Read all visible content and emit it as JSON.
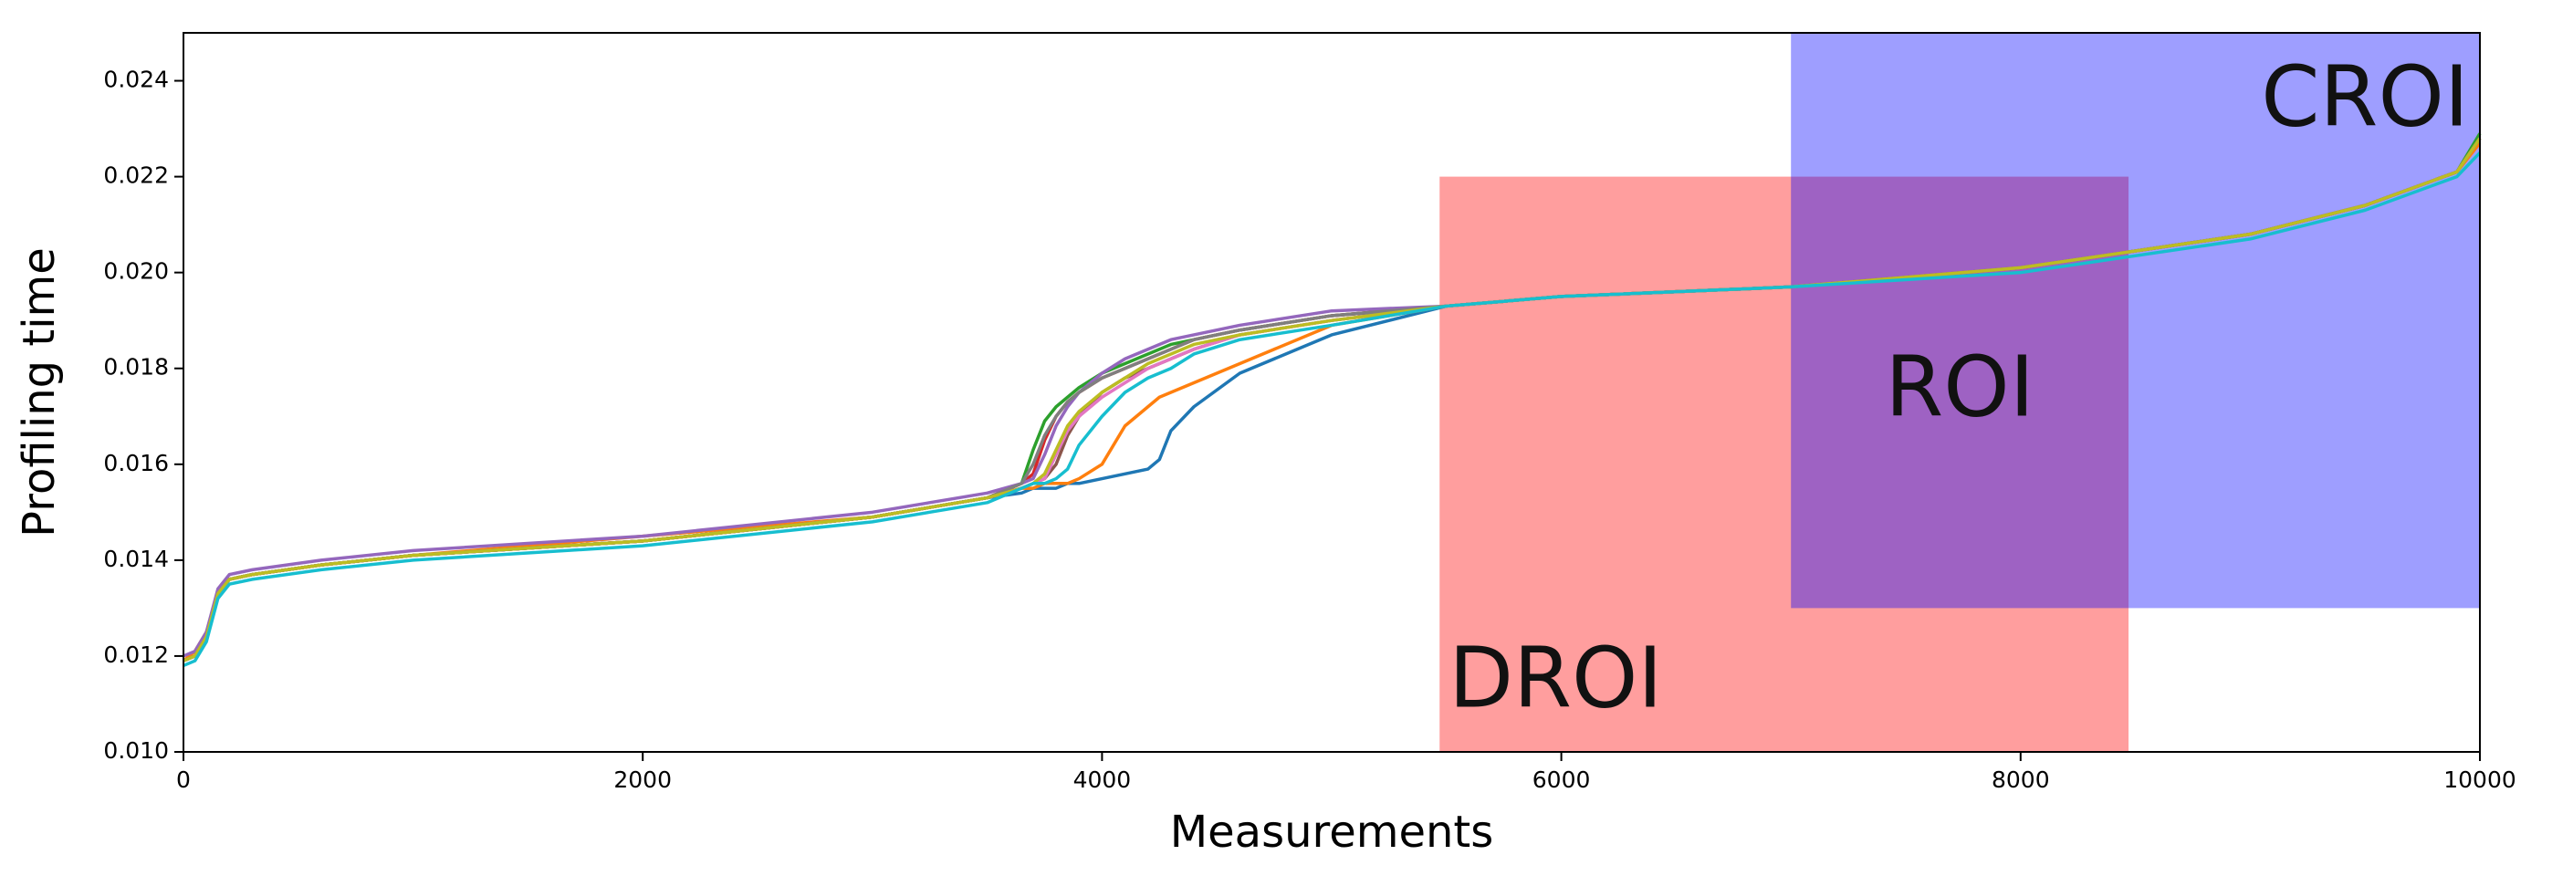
{
  "chart_data": {
    "type": "line",
    "xlabel": "Measurements",
    "ylabel": "Profiling time",
    "x": [
      0,
      50,
      100,
      150,
      200,
      300,
      600,
      1000,
      2000,
      3000,
      3500,
      3650,
      3700,
      3750,
      3800,
      3850,
      3900,
      4000,
      4100,
      4200,
      4250,
      4300,
      4400,
      4600,
      5000,
      5500,
      6000,
      7000,
      8000,
      9000,
      9500,
      9900,
      10000
    ],
    "xlim": [
      0,
      10000
    ],
    "ylim": [
      0.01,
      0.025
    ],
    "xticks": [
      0,
      2000,
      4000,
      6000,
      8000,
      10000
    ],
    "yticks": [
      {
        "value": 0.01,
        "label": "0.010"
      },
      {
        "value": 0.012,
        "label": "0.012"
      },
      {
        "value": 0.014,
        "label": "0.014"
      },
      {
        "value": 0.016,
        "label": "0.016"
      },
      {
        "value": 0.018,
        "label": "0.018"
      },
      {
        "value": 0.02,
        "label": "0.020"
      },
      {
        "value": 0.022,
        "label": "0.022"
      },
      {
        "value": 0.024,
        "label": "0.024"
      }
    ],
    "regions": [
      {
        "label": "DROI",
        "xlim": [
          5470,
          8470
        ],
        "ylim": [
          0.01,
          0.022
        ],
        "color": "#ff0000"
      },
      {
        "label": "CROI",
        "xlim": [
          7000,
          10000
        ],
        "ylim": [
          0.013,
          0.025
        ],
        "color": "#0000ff"
      }
    ],
    "annotation": "ROI",
    "series": [
      {
        "color": "#1f77b4",
        "values": [
          0.0119,
          0.012,
          0.0124,
          0.0133,
          0.0136,
          0.0137,
          0.0139,
          0.0141,
          0.0144,
          0.0149,
          0.0153,
          0.0154,
          0.0155,
          0.0155,
          0.0155,
          0.0156,
          0.0156,
          0.0157,
          0.0158,
          0.0159,
          0.0161,
          0.0167,
          0.0172,
          0.0179,
          0.0187,
          0.0193,
          0.0195,
          0.0197,
          0.0201,
          0.0208,
          0.0214,
          0.0221,
          0.0228
        ]
      },
      {
        "color": "#ff7f0e",
        "values": [
          0.0119,
          0.0121,
          0.0125,
          0.0133,
          0.0136,
          0.0137,
          0.0139,
          0.0141,
          0.0145,
          0.0149,
          0.0153,
          0.0155,
          0.0155,
          0.0156,
          0.0156,
          0.0156,
          0.0157,
          0.016,
          0.0168,
          0.0172,
          0.0174,
          0.0175,
          0.0177,
          0.0181,
          0.0189,
          0.0193,
          0.0195,
          0.0197,
          0.0201,
          0.0208,
          0.0214,
          0.0221,
          0.0227
        ]
      },
      {
        "color": "#2ca02c",
        "values": [
          0.0119,
          0.012,
          0.0124,
          0.0133,
          0.0136,
          0.0137,
          0.0139,
          0.0141,
          0.0144,
          0.0149,
          0.0153,
          0.0156,
          0.0163,
          0.0169,
          0.0172,
          0.0174,
          0.0176,
          0.0179,
          0.0181,
          0.0183,
          0.0184,
          0.0185,
          0.0186,
          0.0188,
          0.0191,
          0.0193,
          0.0195,
          0.0197,
          0.0201,
          0.0208,
          0.0214,
          0.0221,
          0.0229
        ]
      },
      {
        "color": "#d62728",
        "values": [
          0.0119,
          0.012,
          0.0124,
          0.0133,
          0.0136,
          0.0137,
          0.0139,
          0.0141,
          0.0144,
          0.0149,
          0.0153,
          0.0156,
          0.0158,
          0.0165,
          0.017,
          0.0173,
          0.0175,
          0.0178,
          0.018,
          0.0182,
          0.0183,
          0.0184,
          0.0186,
          0.0188,
          0.0191,
          0.0193,
          0.0195,
          0.0197,
          0.0201,
          0.0208,
          0.0214,
          0.0221,
          0.0228
        ]
      },
      {
        "color": "#9467bd",
        "values": [
          0.012,
          0.0121,
          0.0125,
          0.0134,
          0.0137,
          0.0138,
          0.014,
          0.0142,
          0.0145,
          0.015,
          0.0154,
          0.0156,
          0.0157,
          0.0162,
          0.0168,
          0.0172,
          0.0175,
          0.0179,
          0.0182,
          0.0184,
          0.0185,
          0.0186,
          0.0187,
          0.0189,
          0.0192,
          0.0193,
          0.0195,
          0.0197,
          0.0201,
          0.0208,
          0.0214,
          0.0221,
          0.0228
        ]
      },
      {
        "color": "#8c564b",
        "values": [
          0.0119,
          0.012,
          0.0124,
          0.0133,
          0.0136,
          0.0137,
          0.0139,
          0.0141,
          0.0144,
          0.0149,
          0.0153,
          0.0155,
          0.0156,
          0.0157,
          0.016,
          0.0166,
          0.017,
          0.0175,
          0.0178,
          0.018,
          0.0181,
          0.0182,
          0.0184,
          0.0187,
          0.019,
          0.0193,
          0.0195,
          0.0197,
          0.0201,
          0.0208,
          0.0214,
          0.0221,
          0.0228
        ]
      },
      {
        "color": "#e377c2",
        "values": [
          0.0119,
          0.012,
          0.0124,
          0.0133,
          0.0136,
          0.0137,
          0.0139,
          0.0141,
          0.0144,
          0.0149,
          0.0153,
          0.0155,
          0.0156,
          0.0157,
          0.0162,
          0.0167,
          0.017,
          0.0174,
          0.0177,
          0.018,
          0.0181,
          0.0182,
          0.0184,
          0.0187,
          0.019,
          0.0193,
          0.0195,
          0.0197,
          0.0201,
          0.0208,
          0.0214,
          0.0221,
          0.0228
        ]
      },
      {
        "color": "#7f7f7f",
        "values": [
          0.0119,
          0.012,
          0.0124,
          0.0133,
          0.0136,
          0.0137,
          0.0139,
          0.0141,
          0.0144,
          0.0149,
          0.0153,
          0.0156,
          0.016,
          0.0166,
          0.017,
          0.0173,
          0.0175,
          0.0178,
          0.018,
          0.0182,
          0.0183,
          0.0184,
          0.0186,
          0.0188,
          0.0191,
          0.0193,
          0.0195,
          0.0197,
          0.0201,
          0.0208,
          0.0214,
          0.0221,
          0.0228
        ]
      },
      {
        "color": "#bcbd22",
        "values": [
          0.0119,
          0.012,
          0.0124,
          0.0133,
          0.0136,
          0.0137,
          0.0139,
          0.0141,
          0.0144,
          0.0149,
          0.0153,
          0.0155,
          0.0156,
          0.0158,
          0.0163,
          0.0168,
          0.0171,
          0.0175,
          0.0178,
          0.0181,
          0.0182,
          0.0183,
          0.0185,
          0.0187,
          0.019,
          0.0193,
          0.0195,
          0.0197,
          0.0201,
          0.0208,
          0.0214,
          0.0221,
          0.0228
        ]
      },
      {
        "color": "#17becf",
        "values": [
          0.0118,
          0.0119,
          0.0123,
          0.0132,
          0.0135,
          0.0136,
          0.0138,
          0.014,
          0.0143,
          0.0148,
          0.0152,
          0.0155,
          0.0156,
          0.0156,
          0.0157,
          0.0159,
          0.0164,
          0.017,
          0.0175,
          0.0178,
          0.0179,
          0.018,
          0.0183,
          0.0186,
          0.0189,
          0.0193,
          0.0195,
          0.0197,
          0.02,
          0.0207,
          0.0213,
          0.022,
          0.0225
        ]
      }
    ]
  }
}
